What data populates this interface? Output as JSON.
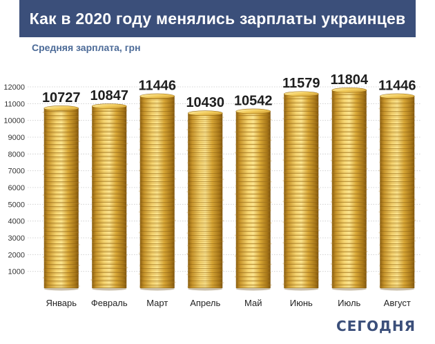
{
  "title": "Как в 2020 году менялись зарплаты украинцев",
  "subtitle": "Средняя зарплата, грн",
  "logo": "СЕГОДНЯ",
  "colors": {
    "header_bg": "#3b4f7a",
    "subtitle": "#4b6a97",
    "coin_light": "#f7d774",
    "coin_mid": "#d6a531",
    "coin_dark": "#9a6d15",
    "grid": "#c8c8c8"
  },
  "chart_data": {
    "type": "bar",
    "categories": [
      "Январь",
      "Февраль",
      "Март",
      "Апрель",
      "Май",
      "Июнь",
      "Июль",
      "Август"
    ],
    "values": [
      10727,
      10847,
      11446,
      10430,
      10542,
      11579,
      11804,
      11446
    ],
    "ylim": [
      0,
      12000
    ],
    "yticks": [
      1000,
      2000,
      3000,
      4000,
      5000,
      6000,
      7000,
      8000,
      9000,
      10000,
      11000,
      12000
    ],
    "grid": true,
    "data_labels": true
  }
}
